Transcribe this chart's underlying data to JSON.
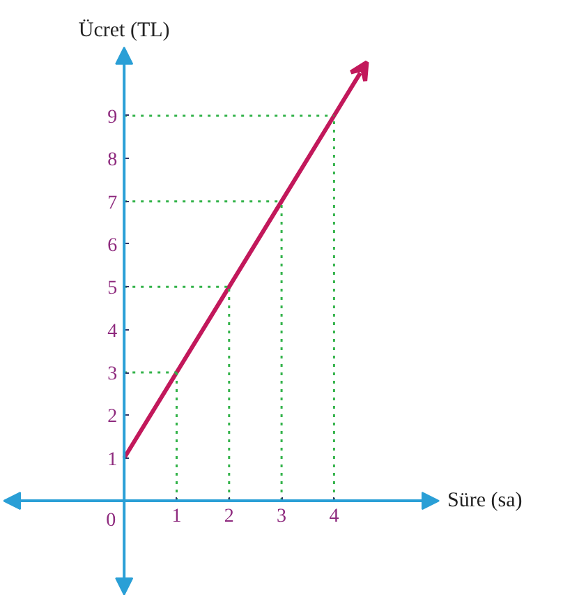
{
  "chart_data": {
    "type": "line",
    "xlabel": "Süre (sa)",
    "ylabel": "Ücret (TL)",
    "x": [
      0,
      1,
      2,
      3,
      4,
      4.5
    ],
    "series": [
      {
        "color": "#c2185b",
        "values": [
          1,
          3,
          5,
          7,
          9,
          10
        ]
      }
    ],
    "xlim": [
      -2.3,
      6.0
    ],
    "ylim": [
      -2.2,
      10.6
    ],
    "xticks": [
      {
        "value": 0,
        "label": "0"
      },
      1,
      2,
      3,
      4
    ],
    "yticks": [
      1,
      2,
      3,
      4,
      5,
      6,
      7,
      8,
      9
    ],
    "ref_lines": [
      {
        "axis": "x",
        "value": 1,
        "color": "#33b34a",
        "line_style": "dotted"
      },
      {
        "axis": "x",
        "value": 2,
        "color": "#33b34a",
        "line_style": "dotted"
      },
      {
        "axis": "x",
        "value": 3,
        "color": "#33b34a",
        "line_style": "dotted"
      },
      {
        "axis": "x",
        "value": 4,
        "color": "#33b34a",
        "line_style": "dotted"
      },
      {
        "axis": "y",
        "value": 3,
        "color": "#33b34a",
        "line_style": "dotted"
      },
      {
        "axis": "y",
        "value": 5,
        "color": "#33b34a",
        "line_style": "dotted"
      },
      {
        "axis": "y",
        "value": 7,
        "color": "#33b34a",
        "line_style": "dotted"
      },
      {
        "axis": "y",
        "value": 9,
        "color": "#33b34a",
        "line_style": "dotted"
      }
    ],
    "grid": false,
    "marker": "none",
    "line_style": "solid"
  }
}
